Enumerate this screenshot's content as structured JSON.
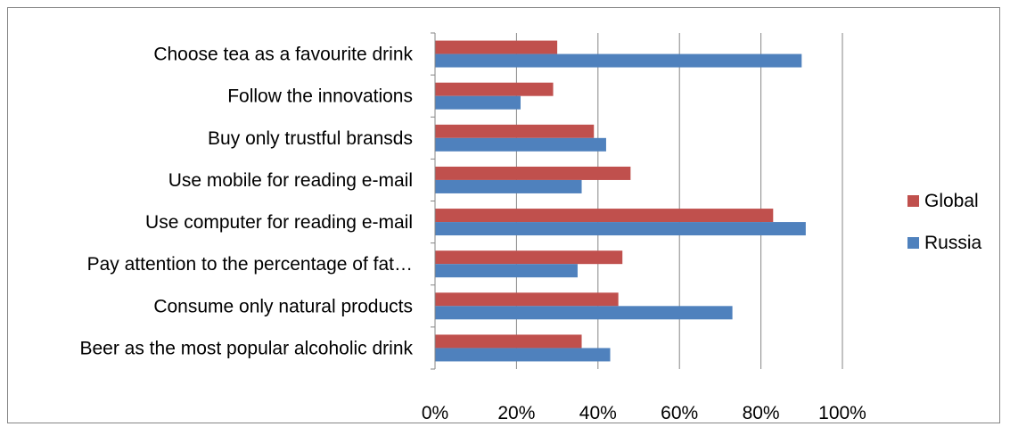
{
  "chart_data": {
    "type": "bar",
    "orientation": "horizontal",
    "categories": [
      "Choose tea as a favourite drink",
      "Follow the innovations",
      "Buy only trustful bransds",
      "Use mobile for reading e-mail",
      "Use computer for reading e-mail",
      "Pay attention to the percentage of fat…",
      "Consume only natural products",
      "Beer as the most popular alcoholic drink"
    ],
    "series": [
      {
        "name": "Global",
        "color": "#C0504D",
        "values": [
          30,
          29,
          39,
          48,
          83,
          46,
          45,
          36
        ]
      },
      {
        "name": "Russia",
        "color": "#4F81BD",
        "values": [
          90,
          21,
          42,
          36,
          91,
          35,
          73,
          43
        ]
      }
    ],
    "xlim": [
      0,
      100
    ],
    "x_ticks": [
      "0%",
      "20%",
      "40%",
      "60%",
      "80%",
      "100%"
    ],
    "grid": true,
    "legend_position": "right"
  }
}
